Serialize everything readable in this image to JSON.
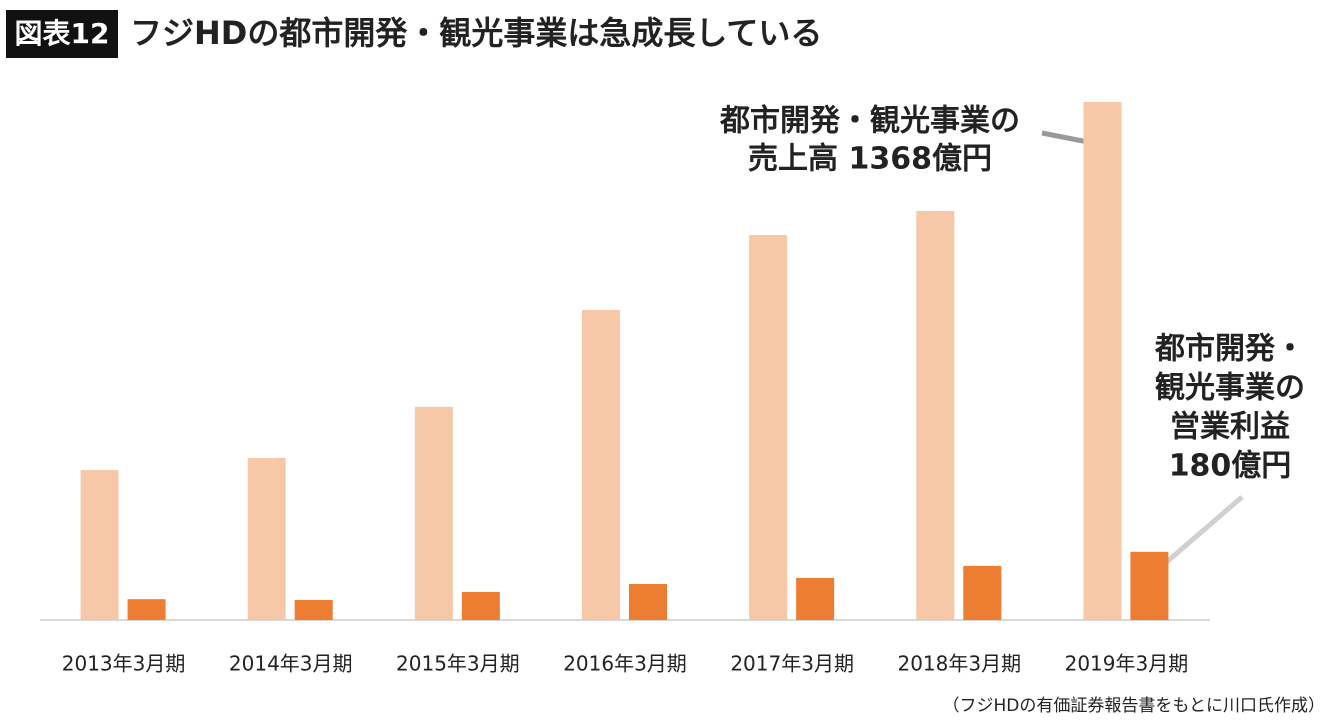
{
  "chart_data": {
    "type": "bar",
    "badge": "図表12",
    "title": "フジHDの都市開発・観光事業は急成長している",
    "categories": [
      "2013年3月期",
      "2014年3月期",
      "2015年3月期",
      "2016年3月期",
      "2017年3月期",
      "2018年3月期",
      "2019年3月期"
    ],
    "series": [
      {
        "color": "#f6c8a8",
        "values": [
          396,
          428,
          563,
          819,
          1017,
          1080,
          1368
        ]
      },
      {
        "color": "#ed7d31",
        "values": [
          55,
          53,
          74,
          95,
          111,
          143,
          180
        ]
      }
    ],
    "annotations": [
      {
        "lines": [
          "都市開発・観光事業の",
          "売上高 1368億円"
        ]
      },
      {
        "lines": [
          "都市開発・",
          "観光事業の",
          "営業利益",
          "180億円"
        ]
      }
    ],
    "source": "（フジHDの有価証券報告書をもとに川口氏作成）"
  }
}
